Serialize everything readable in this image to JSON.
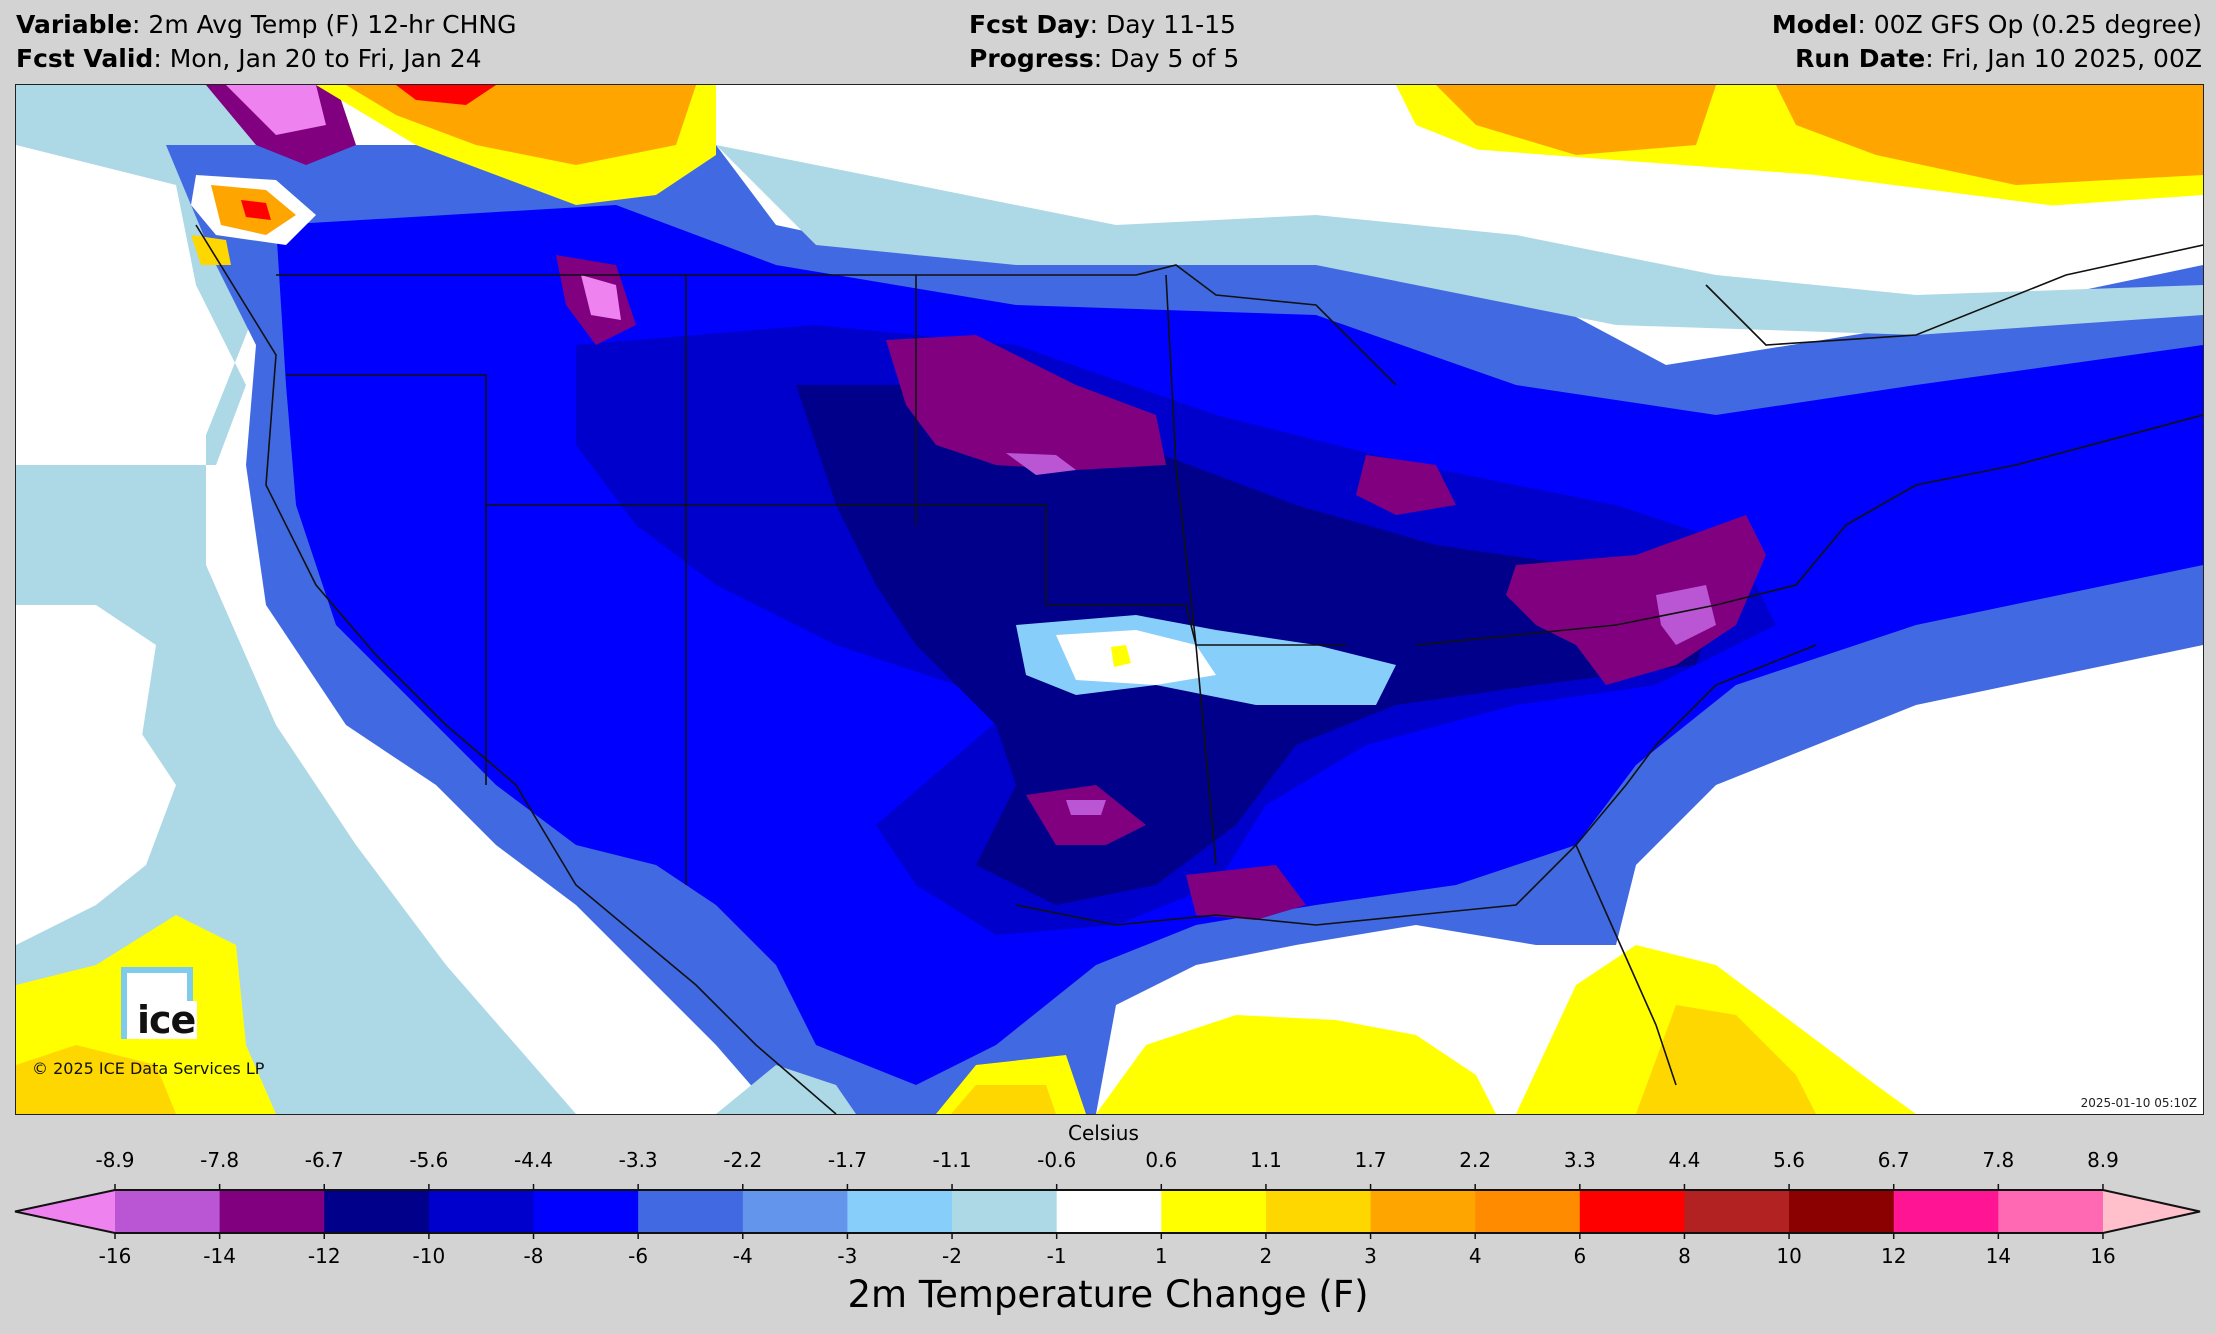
{
  "header": {
    "left": [
      {
        "label": "Variable",
        "value": ": 2m Avg Temp (F) 12-hr CHNG"
      },
      {
        "label": "Fcst Valid",
        "value": ": Mon, Jan 20 to Fri, Jan 24"
      }
    ],
    "center": [
      {
        "label": "Fcst Day",
        "value": ": Day 11-15"
      },
      {
        "label": "Progress",
        "value": ": Day 5 of 5"
      }
    ],
    "right": [
      {
        "label": "Model",
        "value": ": 00Z GFS Op (0.25 degree)"
      },
      {
        "label": "Run Date",
        "value": ": Fri, Jan 10 2025, 00Z"
      }
    ]
  },
  "map": {
    "logo_text": "ice",
    "logo_icon": "ice-logo-icon",
    "copyright": "© 2025 ICE Data Services LP",
    "timestamp": "2025-01-10 05:10Z",
    "region": "Contiguous United States and southern Canada"
  },
  "colorbar": {
    "top_label": "Celsius",
    "title": "2m Temperature Change (F)",
    "fahrenheit_ticks": [
      "-16",
      "-14",
      "-12",
      "-10",
      "-8",
      "-6",
      "-4",
      "-3",
      "-2",
      "-1",
      "1",
      "2",
      "3",
      "4",
      "6",
      "8",
      "10",
      "12",
      "14",
      "16"
    ],
    "celsius_ticks": [
      "-8.9",
      "-7.8",
      "-6.7",
      "-5.6",
      "-4.4",
      "-3.3",
      "-2.2",
      "-1.7",
      "-1.1",
      "-0.6",
      "0.6",
      "1.1",
      "1.7",
      "2.2",
      "3.3",
      "4.4",
      "5.6",
      "6.7",
      "7.8",
      "8.9"
    ],
    "under_color": "#ee82ee",
    "over_color": "#ffc0cb",
    "colors": [
      "#ba55d3",
      "#800080",
      "#00008b",
      "#0000cd",
      "#0000ff",
      "#4169e1",
      "#6495ed",
      "#87cefa",
      "#add8e6",
      "#ffffff",
      "#ffff00",
      "#ffd700",
      "#ffa500",
      "#ff8c00",
      "#ff0000",
      "#b22222",
      "#8b0000",
      "#ff1493",
      "#ff69b4"
    ]
  },
  "chart_data": {
    "type": "heatmap",
    "title": "2m Avg Temp (F) 12-hr CHNG — GFS Op 0.25°, Day 11-15 (Mon Jan 20 to Fri Jan 24), Day 5 of 5",
    "colorbar_label": "2m Temperature Change (F)",
    "secondary_label": "Celsius",
    "levels_F": [
      -16,
      -14,
      -12,
      -10,
      -8,
      -6,
      -4,
      -3,
      -2,
      -1,
      1,
      2,
      3,
      4,
      6,
      8,
      10,
      12,
      14,
      16
    ],
    "levels_C": [
      -8.9,
      -7.8,
      -6.7,
      -5.6,
      -4.4,
      -3.3,
      -2.2,
      -1.7,
      -1.1,
      -0.6,
      0.6,
      1.1,
      1.7,
      2.2,
      3.3,
      4.4,
      5.6,
      6.7,
      7.8,
      8.9
    ],
    "extend": "both",
    "features": [
      {
        "area": "Most of CONUS",
        "change_F": "-4 to -10"
      },
      {
        "area": "Dakotas / Nebraska",
        "change_F": "-12 to -14"
      },
      {
        "area": "Ohio Valley / West Virginia / western PA",
        "change_F": "-12 to -14"
      },
      {
        "area": "Central & East Texas / Louisiana coast",
        "change_F": "-12 to -14"
      },
      {
        "area": "Southern Iowa / northern Illinois",
        "change_F": "-12 to -14"
      },
      {
        "area": "Northern Rockies / British Columbia interior",
        "change_F": "-12 to -16"
      },
      {
        "area": "Kansas / Missouri band",
        "change_F": "-1 to +2"
      },
      {
        "area": "Northern Canada (Hudson Bay / Quebec)",
        "change_F": "+1 to +6"
      },
      {
        "area": "Florida / Bahamas / Gulf of Mexico",
        "change_F": "+1 to +4"
      },
      {
        "area": "Pacific Ocean offshore",
        "change_F": "-1 to +1"
      },
      {
        "area": "Coastal British Columbia",
        "change_F": "+1 to +8"
      }
    ]
  }
}
